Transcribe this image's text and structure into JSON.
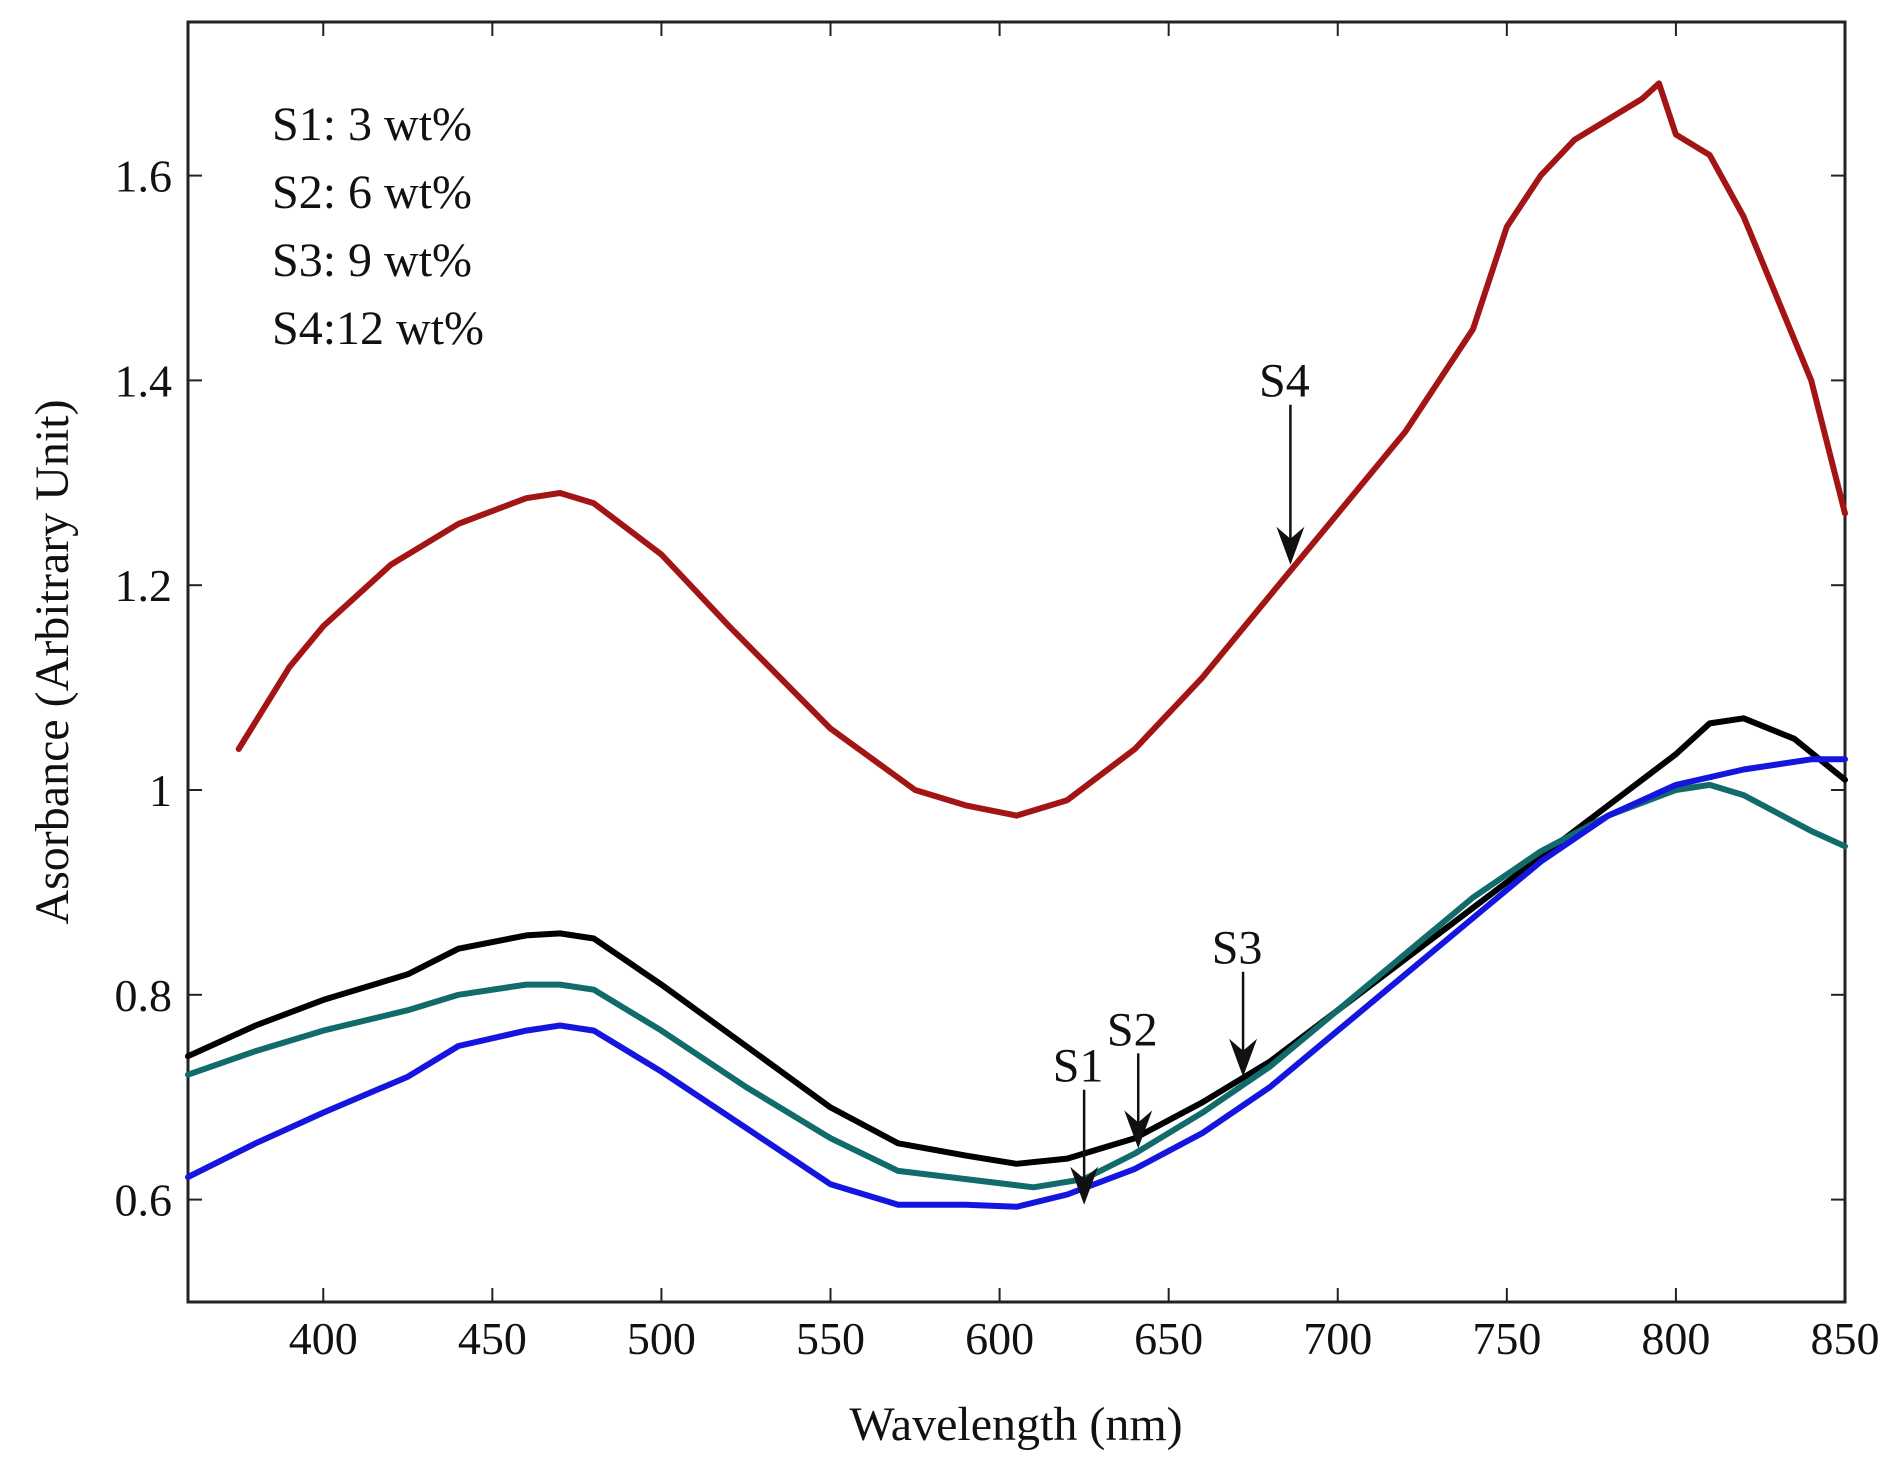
{
  "chart_data": {
    "type": "line",
    "title": "",
    "xlabel": "Wavelength (nm)",
    "ylabel": "Asorbance (Arbitrary Unit)",
    "xlim": [
      360,
      850
    ],
    "ylim": [
      0.5,
      1.75
    ],
    "xticks": [
      400,
      450,
      500,
      550,
      600,
      650,
      700,
      750,
      800,
      850
    ],
    "yticks": [
      0.6,
      0.8,
      1,
      1.2,
      1.4,
      1.6
    ],
    "xtick_labels": [
      "400",
      "450",
      "500",
      "550",
      "600",
      "650",
      "700",
      "750",
      "800",
      "850"
    ],
    "ytick_labels": [
      "0.6",
      "0.8",
      "1",
      "1.2",
      "1.4",
      "1.6"
    ],
    "grid": false,
    "legend_text": [
      "S1: 3 wt%",
      "S2: 6 wt%",
      "S3: 9 wt%",
      "S4:12 wt%"
    ],
    "legend_placement": "top-left",
    "series": [
      {
        "name": "S4",
        "color": "#a31515",
        "x": [
          375,
          390,
          400,
          420,
          440,
          460,
          470,
          480,
          500,
          520,
          550,
          575,
          590,
          605,
          620,
          640,
          660,
          680,
          700,
          720,
          740,
          750,
          760,
          770,
          780,
          790,
          795,
          800,
          810,
          820,
          840,
          850
        ],
        "y": [
          1.04,
          1.12,
          1.16,
          1.22,
          1.26,
          1.285,
          1.29,
          1.28,
          1.23,
          1.16,
          1.06,
          1.0,
          0.985,
          0.975,
          0.99,
          1.04,
          1.11,
          1.19,
          1.27,
          1.35,
          1.45,
          1.55,
          1.6,
          1.635,
          1.655,
          1.675,
          1.69,
          1.64,
          1.62,
          1.56,
          1.4,
          1.27
        ]
      },
      {
        "name": "S3",
        "color": "#000000",
        "x": [
          360,
          380,
          400,
          425,
          440,
          460,
          470,
          480,
          500,
          525,
          550,
          570,
          590,
          605,
          620,
          640,
          660,
          680,
          700,
          720,
          740,
          760,
          780,
          800,
          810,
          820,
          835,
          850
        ],
        "y": [
          0.74,
          0.77,
          0.795,
          0.82,
          0.845,
          0.858,
          0.86,
          0.855,
          0.81,
          0.75,
          0.69,
          0.655,
          0.643,
          0.635,
          0.64,
          0.66,
          0.695,
          0.735,
          0.785,
          0.835,
          0.885,
          0.935,
          0.985,
          1.035,
          1.065,
          1.07,
          1.05,
          1.01
        ]
      },
      {
        "name": "S2",
        "color": "#126b6b",
        "x": [
          360,
          380,
          400,
          425,
          440,
          460,
          470,
          480,
          500,
          525,
          550,
          570,
          590,
          610,
          625,
          640,
          660,
          680,
          700,
          720,
          740,
          760,
          780,
          800,
          810,
          820,
          840,
          850
        ],
        "y": [
          0.722,
          0.745,
          0.765,
          0.785,
          0.8,
          0.81,
          0.81,
          0.805,
          0.765,
          0.71,
          0.66,
          0.628,
          0.62,
          0.612,
          0.62,
          0.645,
          0.685,
          0.73,
          0.785,
          0.84,
          0.895,
          0.94,
          0.975,
          1.0,
          1.005,
          0.995,
          0.96,
          0.945
        ]
      },
      {
        "name": "S1",
        "color": "#1515e0",
        "x": [
          360,
          380,
          400,
          425,
          440,
          460,
          470,
          480,
          500,
          525,
          550,
          570,
          590,
          605,
          620,
          640,
          660,
          680,
          700,
          720,
          740,
          760,
          780,
          800,
          820,
          840,
          850
        ],
        "y": [
          0.622,
          0.655,
          0.685,
          0.72,
          0.75,
          0.765,
          0.77,
          0.765,
          0.725,
          0.67,
          0.615,
          0.595,
          0.595,
          0.593,
          0.605,
          0.63,
          0.665,
          0.71,
          0.765,
          0.82,
          0.875,
          0.93,
          0.975,
          1.005,
          1.02,
          1.03,
          1.03
        ]
      }
    ],
    "annotations": [
      {
        "label": "S4",
        "x": 686,
        "y": 1.22
      },
      {
        "label": "S3",
        "x": 672,
        "y": 0.72
      },
      {
        "label": "S2",
        "x": 641,
        "y": 0.65
      },
      {
        "label": "S1",
        "x": 625,
        "y": 0.595
      }
    ]
  }
}
